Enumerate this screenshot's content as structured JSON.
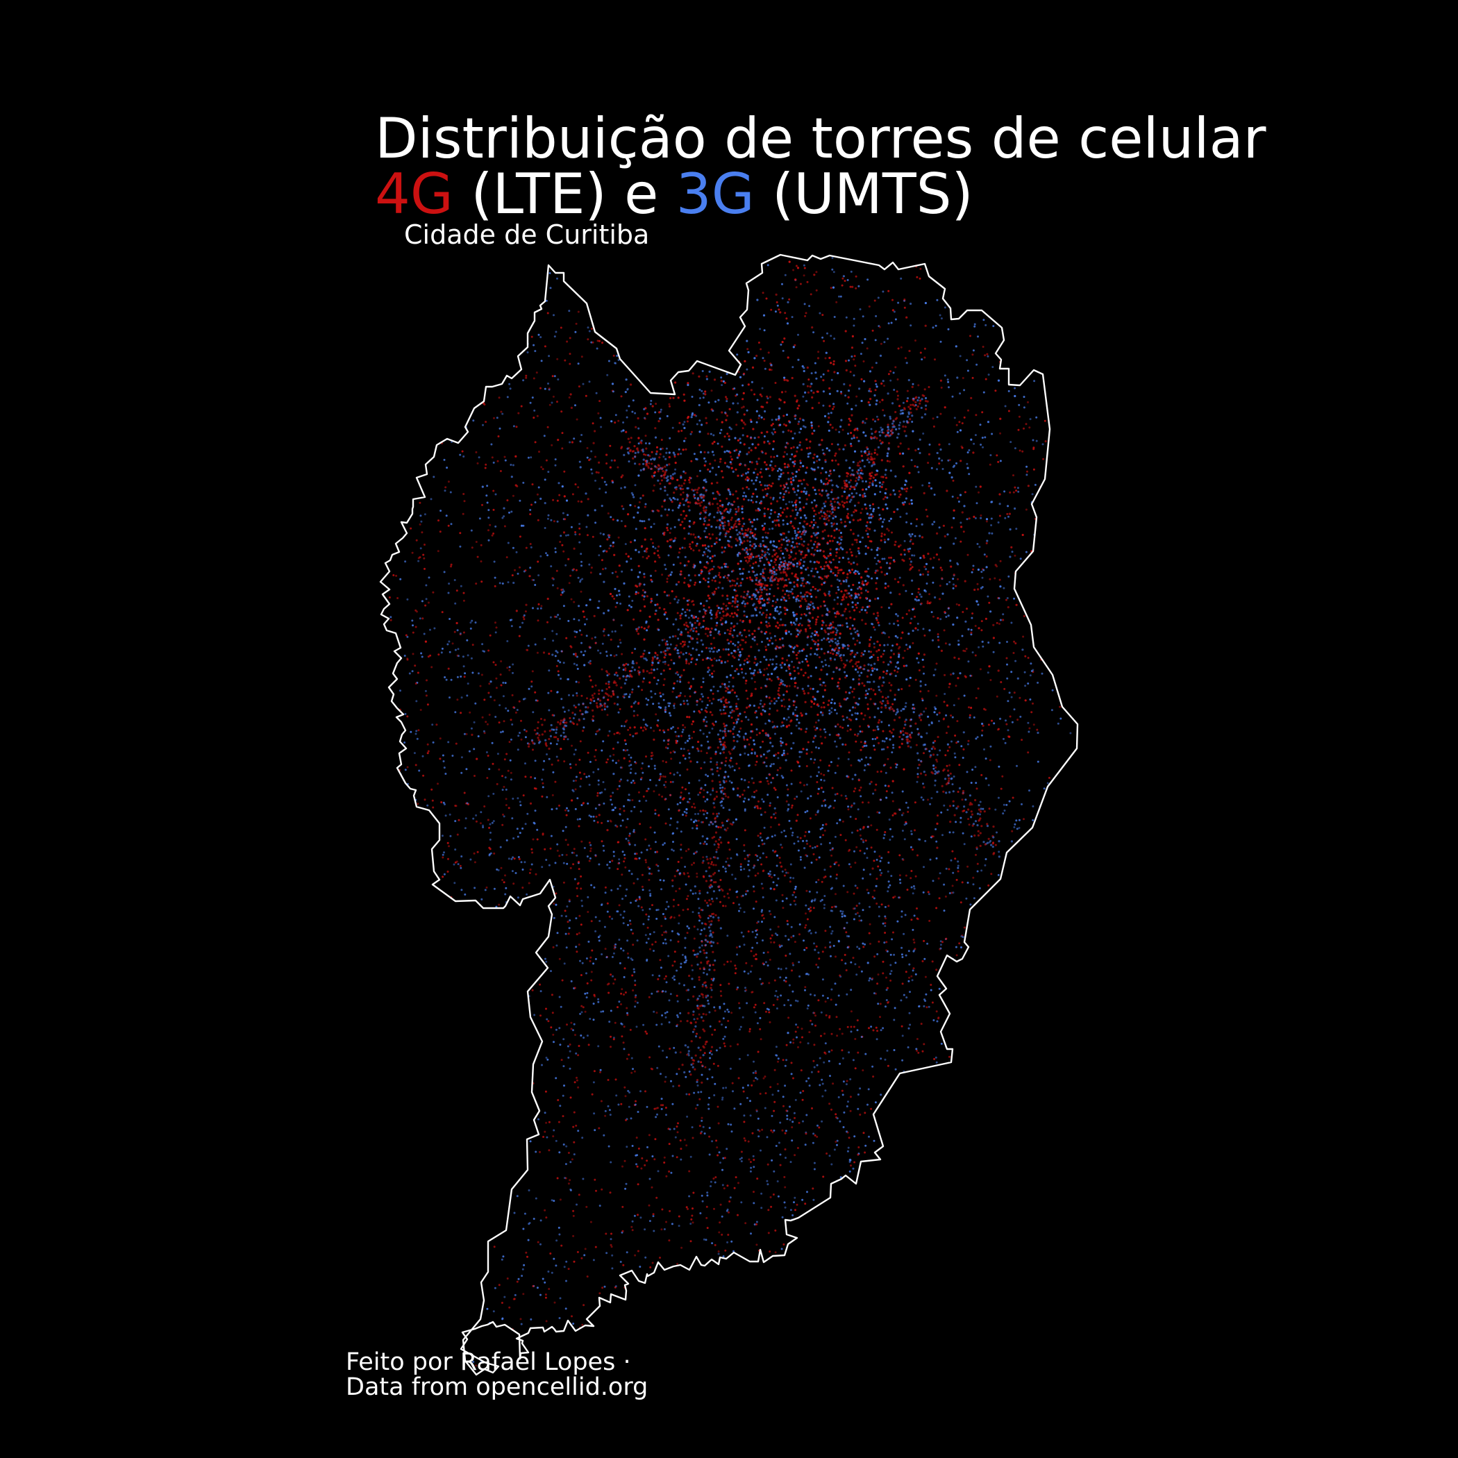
{
  "colors": {
    "background": "#000000",
    "outline": "#ffffff",
    "lte": "#cc1111",
    "umts": "#4a7ff0",
    "text": "#ffffff"
  },
  "title": {
    "line1": "Distribuição de torres de celular",
    "lte_label": "4G",
    "lte_suffix": " (LTE) e ",
    "umts_label": "3G",
    "umts_suffix": " (UMTS)"
  },
  "subtitle": "Cidade de Curitiba",
  "credits": {
    "author": "Feito por Rafael Lopes ·",
    "source": "Data from opencellid.org"
  },
  "legend": {
    "series": [
      {
        "name": "4G",
        "technology": "LTE",
        "color": "#cc1111"
      },
      {
        "name": "3G",
        "technology": "UMTS",
        "color": "#4a7ff0"
      }
    ]
  }
}
